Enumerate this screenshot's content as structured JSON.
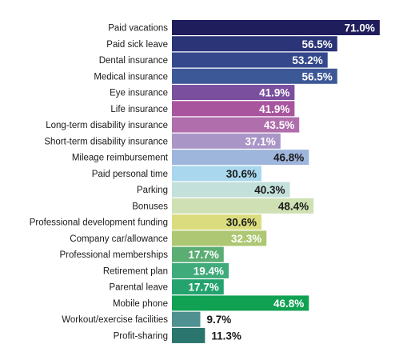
{
  "chart_data": {
    "type": "bar",
    "orientation": "horizontal",
    "title": "",
    "xlabel": "",
    "ylabel": "",
    "grid": false,
    "legend": "none",
    "value_suffix": "%",
    "categories": [
      "Paid vacations",
      "Paid sick leave",
      "Dental insurance",
      "Medical insurance",
      "Eye insurance",
      "Life insurance",
      "Long-term disability insurance",
      "Short-term disability insurance",
      "Mileage reimbursement",
      "Paid personal time",
      "Parking",
      "Bonuses",
      "Professional development funding",
      "Company car/allowance",
      "Professional memberships",
      "Retirement plan",
      "Parental leave",
      "Mobile phone",
      "Workout/exercise facilities",
      "Profit-sharing"
    ],
    "values": [
      71.0,
      56.5,
      53.2,
      56.5,
      41.9,
      41.9,
      43.5,
      37.1,
      46.8,
      30.6,
      40.3,
      48.4,
      30.6,
      32.3,
      17.7,
      19.4,
      17.7,
      46.8,
      9.7,
      11.3
    ],
    "value_labels": [
      "71.0%",
      "56.5%",
      "53.2%",
      "56.5%",
      "41.9%",
      "41.9%",
      "43.5%",
      "37.1%",
      "46.8%",
      "30.6%",
      "40.3%",
      "48.4%",
      "30.6%",
      "32.3%",
      "17.7%",
      "19.4%",
      "17.7%",
      "46.8%",
      "9.7%",
      "11.3%"
    ],
    "colors": [
      "#1f1d5b",
      "#2a3477",
      "#34488b",
      "#3d5896",
      "#7a4f9e",
      "#a8559e",
      "#b06fac",
      "#a996c6",
      "#9fb6dc",
      "#a8d7ee",
      "#c4e0db",
      "#cfe1b4",
      "#dbdc7e",
      "#adc772",
      "#5aad73",
      "#3faa7a",
      "#24a36f",
      "#10a153",
      "#4f9090",
      "#2a756d"
    ],
    "label_colors": [
      "#ffffff",
      "#ffffff",
      "#ffffff",
      "#ffffff",
      "#ffffff",
      "#ffffff",
      "#ffffff",
      "#ffffff",
      "#1a1a1a",
      "#1a1a1a",
      "#1a1a1a",
      "#1a1a1a",
      "#1a1a1a",
      "#ffffff",
      "#ffffff",
      "#ffffff",
      "#ffffff",
      "#ffffff",
      "#1a1a1a",
      "#1a1a1a"
    ],
    "label_inside": [
      true,
      true,
      true,
      true,
      true,
      true,
      true,
      true,
      true,
      true,
      true,
      true,
      true,
      true,
      true,
      true,
      true,
      true,
      false,
      false
    ]
  }
}
